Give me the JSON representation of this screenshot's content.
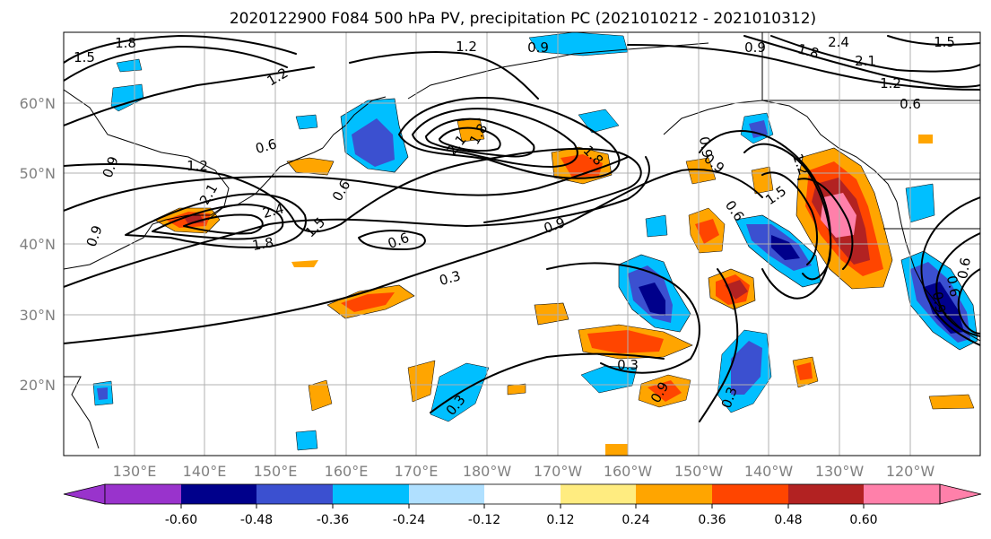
{
  "title": "2020122900 F084 500 hPa PV, precipitation PC (2021010212 - 2021010312)",
  "lat_labels": [
    "60°N",
    "50°N",
    "40°N",
    "30°N",
    "20°N"
  ],
  "lat_values": [
    60,
    50,
    40,
    30,
    20
  ],
  "lon_labels": [
    "130°E",
    "140°E",
    "150°E",
    "160°E",
    "170°E",
    "180°W",
    "170°W",
    "160°W",
    "150°W",
    "140°W",
    "130°W",
    "120°W"
  ],
  "lon_values": [
    130,
    140,
    150,
    160,
    170,
    180,
    190,
    200,
    210,
    220,
    230,
    240
  ],
  "map_extent": {
    "lon": [
      120,
      250
    ],
    "lat": [
      10,
      70
    ]
  },
  "colorbar": {
    "bounds": [
      "-0.60",
      "-0.48",
      "-0.36",
      "-0.24",
      "-0.12",
      "0.12",
      "0.24",
      "0.36",
      "0.48",
      "0.60"
    ],
    "colors": [
      "#9933cc",
      "#00008b",
      "#3b50d0",
      "#00bfff",
      "#b0e0ff",
      "#ffffff",
      "#ffec80",
      "#ffa500",
      "#ff4500",
      "#b22222",
      "#ff80aa"
    ]
  },
  "contour_labels": [
    "1.8",
    "1.5",
    "1.2",
    "0.9",
    "1.2",
    "0.9",
    "2.4",
    "2.1",
    "1.2",
    "1.5",
    "0.6",
    "0.6",
    "0.9",
    "1.8",
    "2.1",
    "1.8",
    "0.9",
    "0.6",
    "2.4",
    "2.1",
    "1.8",
    "1.5",
    "1.2",
    "0.9",
    "0.6",
    "0.9",
    "1.8",
    "1.5",
    "1.2",
    "0.6",
    "0.9",
    "0.6",
    "0.3",
    "0.3",
    "0.3",
    "0.3",
    "0.9",
    "0.6",
    "0.9"
  ],
  "chart_data": {
    "type": "map",
    "title": "2020122900 F084 500 hPa PV, precipitation PC (2021010212 - 2021010312)",
    "xlim": [
      120,
      250
    ],
    "ylim": [
      10,
      70
    ],
    "colorbar_levels": [
      -0.6,
      -0.48,
      -0.36,
      -0.24,
      -0.12,
      0.12,
      0.24,
      0.36,
      0.48,
      0.6
    ],
    "pv_contour_levels": [
      0.3,
      0.6,
      0.9,
      1.2,
      1.5,
      1.8,
      2.1,
      2.4
    ]
  }
}
